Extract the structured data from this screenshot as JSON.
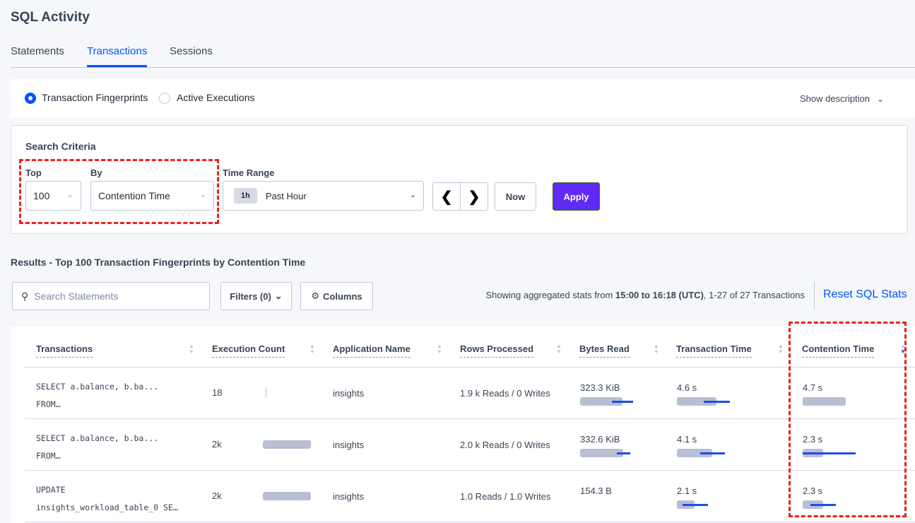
{
  "title": "SQL Activity",
  "tabs": [
    {
      "label": "Statements"
    },
    {
      "label": "Transactions",
      "active": true
    },
    {
      "label": "Sessions"
    }
  ],
  "mode": {
    "options": [
      {
        "label": "Transaction Fingerprints",
        "selected": true
      },
      {
        "label": "Active Executions",
        "selected": false
      }
    ],
    "show_description": "Show description"
  },
  "criteria": {
    "heading": "Search Criteria",
    "top_label": "Top",
    "top_value": "100",
    "by_label": "By",
    "by_value": "Contention Time",
    "time_label": "Time Range",
    "time_badge": "1h",
    "time_value": "Past Hour",
    "now": "Now",
    "apply": "Apply"
  },
  "results": {
    "title": "Results - Top 100 Transaction Fingerprints by Contention Time",
    "search_placeholder": "Search Statements",
    "filters": "Filters (0)",
    "columns": "Columns",
    "summary_prefix": "Showing aggregated stats from ",
    "summary_range": "15:00 to 16:18 (UTC)",
    "summary_suffix": ", 1-27 of 27 Transactions",
    "reset": "Reset SQL Stats"
  },
  "colors": {
    "accent": "#0055ff",
    "apply": "#5f2bf5",
    "bar": "#b8bfd2",
    "deviation": "#1f4cf0",
    "highlight": "#f0201a"
  },
  "table": {
    "headers": [
      "Transactions",
      "Execution Count",
      "Application Name",
      "Rows Processed",
      "Bytes Read",
      "Transaction Time",
      "Contention Time"
    ],
    "sorted_column": "Contention Time",
    "sort_direction": "descending",
    "rows": [
      {
        "txn1": "SELECT a.balance, b.ba...",
        "txn2": "FROM…",
        "exec": "18",
        "exec_bar": 0.01,
        "app": "insights",
        "rows": "1.9 k Reads / 0 Writes",
        "bytes": "323.3 KiB",
        "bytes_bar": {
          "mean": 0.8,
          "dev": [
            0.6,
            1.0
          ]
        },
        "time": "4.6 s",
        "time_bar": {
          "mean": 0.75,
          "dev": [
            0.51,
            1.0
          ]
        },
        "cont": "4.7 s",
        "cont_bar": {
          "mean": 0.81,
          "dev": null
        }
      },
      {
        "txn1": "SELECT a.balance, b.ba...",
        "txn2": "FROM…",
        "exec": "2k",
        "exec_bar": 1.0,
        "app": "insights",
        "rows": "2.0 k Reads / 0 Writes",
        "bytes": "332.6 KiB",
        "bytes_bar": {
          "mean": 0.81,
          "dev": [
            0.69,
            0.95
          ]
        },
        "time": "4.1 s",
        "time_bar": {
          "mean": 0.67,
          "dev": [
            0.44,
            0.9
          ]
        },
        "cont": "2.3 s",
        "cont_bar": {
          "mean": 0.39,
          "dev": [
            0.0,
            1.0
          ]
        }
      },
      {
        "txn1": "UPDATE",
        "txn2": "insights_workload_table_0 SE…",
        "exec": "2k",
        "exec_bar": 1.0,
        "app": "insights",
        "rows": "1.0 Reads / 1.0 Writes",
        "bytes": "154.3 B",
        "bytes_bar": null,
        "time": "2.1 s",
        "time_bar": {
          "mean": 0.33,
          "dev": [
            0.1,
            0.59
          ]
        },
        "cont": "2.3 s",
        "cont_bar": {
          "mean": 0.39,
          "dev": [
            0.15,
            0.62
          ]
        }
      }
    ]
  }
}
